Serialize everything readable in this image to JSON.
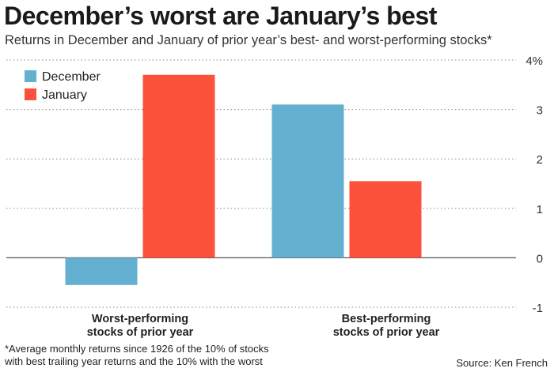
{
  "title": "December’s worst are January’s best",
  "subtitle": "Returns in December and January of prior year’s best- and worst-performing stocks*",
  "footnote": [
    "*Average monthly returns since 1926 of the 10% of stocks",
    "with best trailing year returns and the 10% with the worst"
  ],
  "source": "Source: Ken French",
  "chart_data": {
    "type": "bar",
    "categories": [
      [
        "Worst-performing",
        "stocks of prior year"
      ],
      [
        "Best-performing",
        "stocks of prior year"
      ]
    ],
    "series": [
      {
        "name": "December",
        "color": "#63b0d1",
        "values": [
          -0.55,
          3.1
        ]
      },
      {
        "name": "January",
        "color": "#fc513a",
        "values": [
          3.7,
          1.55
        ]
      }
    ],
    "ylim": [
      -1,
      4
    ],
    "yticks": [
      -1,
      0,
      1,
      2,
      3,
      4
    ],
    "ytick_labels": [
      "-1",
      "0",
      "1",
      "2",
      "3",
      "4%"
    ],
    "yaxis_position": "right",
    "grid": true,
    "legend_position": "top-left"
  }
}
